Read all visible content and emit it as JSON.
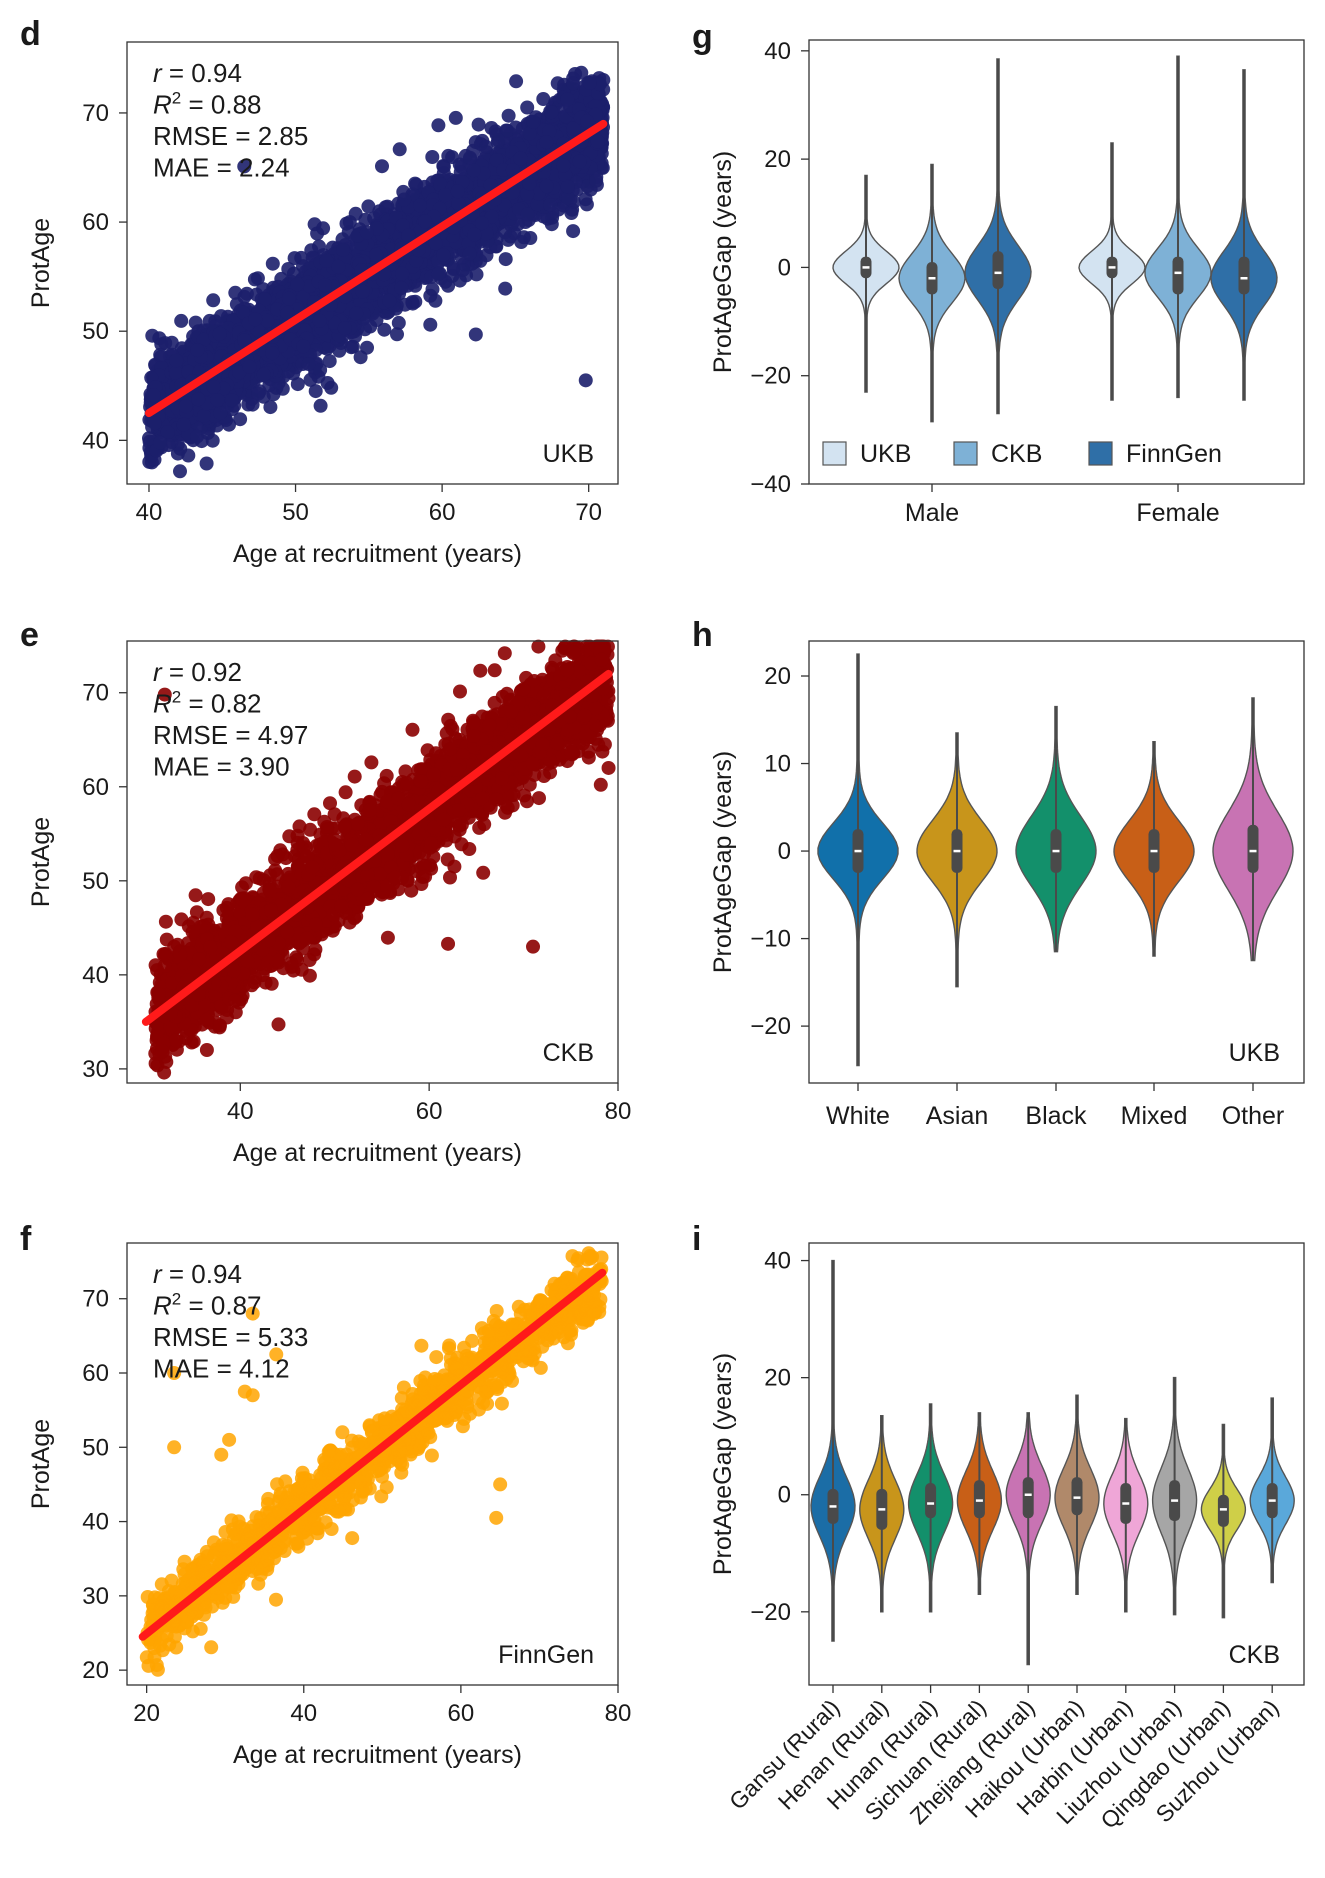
{
  "colors": {
    "ukb_points": "#1c1f6b",
    "ckb_points": "#8b0000",
    "finngen_points": "#ffa500",
    "fit_line": "#ff1a1a",
    "violin_ukb": "#d3e3f1",
    "violin_ckb": "#7eb1d6",
    "violin_finngen": "#2f6fa7",
    "ethnicity": [
      "#1170aa",
      "#c8951b",
      "#13906b",
      "#c85f17",
      "#c873b3"
    ],
    "region": [
      "#1b6da6",
      "#c8951b",
      "#13906b",
      "#c85f17",
      "#c873b3",
      "#b0896a",
      "#efa6d7",
      "#a6a6a6",
      "#cfcf48",
      "#5aa8da"
    ]
  },
  "chart_data": [
    {
      "panel": "d",
      "type": "scatter",
      "xlabel": "Age at recruitment (years)",
      "ylabel": "ProtAge",
      "xlim": [
        38.5,
        72
      ],
      "ylim": [
        36,
        76.5
      ],
      "xticks": [
        40,
        50,
        60,
        70
      ],
      "yticks": [
        40,
        50,
        60,
        70
      ],
      "cohort": "UKB",
      "stats": {
        "r": "0.94",
        "r2": "0.88",
        "rmse": "2.85",
        "mae": "2.24"
      },
      "fit": {
        "x": [
          40,
          71
        ],
        "y": [
          42.5,
          69
        ]
      },
      "cloud": {
        "x_min": 40,
        "x_max": 71,
        "y_at_min": 42.5,
        "y_at_max": 69,
        "half_width": 6,
        "count": 4000,
        "outlier_rate": 0.02
      },
      "outliers": [
        {
          "x": 69.8,
          "y": 45.5
        },
        {
          "x": 62.3,
          "y": 49.7
        },
        {
          "x": 46.5,
          "y": 65.1
        }
      ]
    },
    {
      "panel": "e",
      "type": "scatter",
      "xlabel": "Age at recruitment (years)",
      "ylabel": "ProtAge",
      "xlim": [
        28,
        80
      ],
      "ylim": [
        28.5,
        75.5
      ],
      "xticks": [
        40,
        60,
        80
      ],
      "yticks": [
        30,
        40,
        50,
        60,
        70
      ],
      "cohort": "CKB",
      "stats": {
        "r": "0.92",
        "r2": "0.82",
        "rmse": "4.97",
        "mae": "3.90"
      },
      "fit": {
        "x": [
          30,
          79
        ],
        "y": [
          35,
          72
        ]
      },
      "cloud": {
        "x_min": 31,
        "x_max": 79,
        "y_at_min": 36,
        "y_at_max": 72,
        "half_width": 7,
        "count": 3000,
        "outlier_rate": 0.03
      },
      "outliers": [
        {
          "x": 32,
          "y": 69.8
        },
        {
          "x": 71,
          "y": 43
        },
        {
          "x": 79,
          "y": 62
        },
        {
          "x": 62,
          "y": 43.3
        },
        {
          "x": 33,
          "y": 43
        }
      ]
    },
    {
      "panel": "f",
      "type": "scatter",
      "xlabel": "Age at recruitment (years)",
      "ylabel": "ProtAge",
      "xlim": [
        17.5,
        80
      ],
      "ylim": [
        18,
        77.5
      ],
      "xticks": [
        20,
        40,
        60,
        80
      ],
      "yticks": [
        20,
        30,
        40,
        50,
        60,
        70
      ],
      "cohort": "FinnGen",
      "stats": {
        "r": "0.94",
        "r2": "0.87",
        "rmse": "5.33",
        "mae": "4.12"
      },
      "fit": {
        "x": [
          19.5,
          78
        ],
        "y": [
          24.5,
          73.5
        ]
      },
      "cloud": {
        "x_min": 20,
        "x_max": 78,
        "y_at_min": 25.5,
        "y_at_max": 73,
        "half_width": 6,
        "count": 1300,
        "outlier_rate": 0.02
      },
      "outliers": [
        {
          "x": 23.5,
          "y": 60
        },
        {
          "x": 23.5,
          "y": 50
        },
        {
          "x": 33.5,
          "y": 68
        },
        {
          "x": 36.5,
          "y": 62.5
        },
        {
          "x": 32.5,
          "y": 57.5
        },
        {
          "x": 33.5,
          "y": 57
        },
        {
          "x": 30.5,
          "y": 51
        },
        {
          "x": 29.5,
          "y": 49
        },
        {
          "x": 65,
          "y": 45
        },
        {
          "x": 64.5,
          "y": 40.5
        }
      ]
    },
    {
      "panel": "g",
      "type": "violin",
      "ylabel": "ProtAgeGap (years)",
      "ylim": [
        -40,
        42
      ],
      "yticks": [
        -40,
        -20,
        0,
        20,
        40
      ],
      "groups": [
        "Male",
        "Female"
      ],
      "legend": [
        "UKB",
        "CKB",
        "FinnGen"
      ],
      "series": [
        {
          "group": "Male",
          "cohort": "UKB",
          "min": -23,
          "max": 17,
          "q1": -2,
          "median": 0,
          "q3": 2,
          "sd": 3
        },
        {
          "group": "Male",
          "cohort": "CKB",
          "min": -28.5,
          "max": 19,
          "q1": -5,
          "median": -2,
          "q3": 1,
          "sd": 4.5
        },
        {
          "group": "Male",
          "cohort": "FinnGen",
          "min": -27,
          "max": 38.5,
          "q1": -4,
          "median": -1,
          "q3": 3,
          "sd": 5
        },
        {
          "group": "Female",
          "cohort": "UKB",
          "min": -24.5,
          "max": 23,
          "q1": -2,
          "median": 0,
          "q3": 2,
          "sd": 3
        },
        {
          "group": "Female",
          "cohort": "CKB",
          "min": -24,
          "max": 39,
          "q1": -5,
          "median": -1,
          "q3": 2,
          "sd": 4.5
        },
        {
          "group": "Female",
          "cohort": "FinnGen",
          "min": -24.5,
          "max": 36.5,
          "q1": -5,
          "median": -2,
          "q3": 2,
          "sd": 5
        }
      ]
    },
    {
      "panel": "h",
      "type": "violin",
      "ylabel": "ProtAgeGap (years)",
      "ylim": [
        -26.5,
        24
      ],
      "yticks": [
        -20,
        -10,
        0,
        10,
        20
      ],
      "cohort": "UKB",
      "categories": [
        "White",
        "Asian",
        "Black",
        "Mixed",
        "Other"
      ],
      "series": [
        {
          "name": "White",
          "min": -24.5,
          "max": 22.5,
          "q1": -2.5,
          "median": 0,
          "q3": 2.5,
          "sd": 3.2
        },
        {
          "name": "Asian",
          "min": -15.5,
          "max": 13.5,
          "q1": -2.5,
          "median": 0,
          "q3": 2.5,
          "sd": 3.5
        },
        {
          "name": "Black",
          "min": -11.5,
          "max": 16.5,
          "q1": -2.5,
          "median": 0,
          "q3": 2.5,
          "sd": 4
        },
        {
          "name": "Mixed",
          "min": -12,
          "max": 12.5,
          "q1": -2.5,
          "median": 0,
          "q3": 2.5,
          "sd": 3.5
        },
        {
          "name": "Other",
          "min": -12.5,
          "max": 17.5,
          "q1": -2.5,
          "median": 0,
          "q3": 3,
          "sd": 4.5
        }
      ]
    },
    {
      "panel": "i",
      "type": "violin",
      "ylabel": "ProtAgeGap (years)",
      "ylim": [
        -32.5,
        43
      ],
      "yticks": [
        -20,
        0,
        20,
        40
      ],
      "cohort": "CKB",
      "categories": [
        "Gansu (Rural)",
        "Henan (Rural)",
        "Hunan (Rural)",
        "Sichuan (Rural)",
        "Zhejiang (Rural)",
        "Haikou (Urban)",
        "Harbin (Urban)",
        "Liuzhou (Urban)",
        "Qingdao (Urban)",
        "Suzhou (Urban)"
      ],
      "series": [
        {
          "name": "Gansu (Rural)",
          "min": -25,
          "max": 40,
          "q1": -5,
          "median": -2,
          "q3": 1,
          "sd": 5
        },
        {
          "name": "Henan (Rural)",
          "min": -20,
          "max": 13.5,
          "q1": -6,
          "median": -2.5,
          "q3": 1,
          "sd": 5
        },
        {
          "name": "Hunan (Rural)",
          "min": -20,
          "max": 15.5,
          "q1": -4,
          "median": -1.5,
          "q3": 2,
          "sd": 5
        },
        {
          "name": "Sichuan (Rural)",
          "min": -17,
          "max": 14,
          "q1": -4,
          "median": -1,
          "q3": 2.5,
          "sd": 5
        },
        {
          "name": "Zhejiang (Rural)",
          "min": -29,
          "max": 14,
          "q1": -4,
          "median": 0,
          "q3": 3,
          "sd": 5
        },
        {
          "name": "Haikou (Urban)",
          "min": -17,
          "max": 17,
          "q1": -3.5,
          "median": -0.5,
          "q3": 3,
          "sd": 5
        },
        {
          "name": "Harbin (Urban)",
          "min": -20,
          "max": 13,
          "q1": -5,
          "median": -1.5,
          "q3": 2,
          "sd": 5
        },
        {
          "name": "Liuzhou (Urban)",
          "min": -20.5,
          "max": 20,
          "q1": -4.5,
          "median": -1,
          "q3": 2.5,
          "sd": 5.5
        },
        {
          "name": "Qingdao (Urban)",
          "min": -21,
          "max": 12,
          "q1": -5.5,
          "median": -2.5,
          "q3": 0,
          "sd": 3.5
        },
        {
          "name": "Suzhou (Urban)",
          "min": -15,
          "max": 16.5,
          "q1": -4,
          "median": -1,
          "q3": 2,
          "sd": 4
        }
      ]
    }
  ]
}
